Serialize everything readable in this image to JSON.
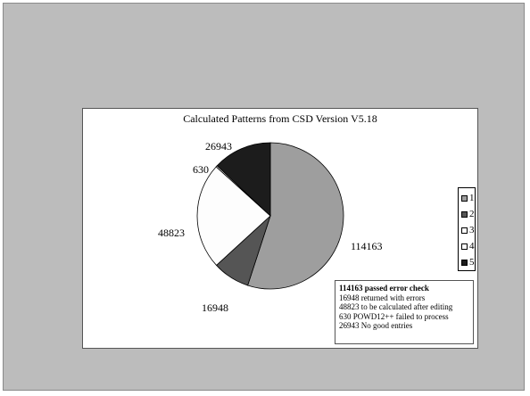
{
  "chart_data": {
    "type": "pie",
    "title": "Calculated Patterns from CSD Version V5.18",
    "categories": [
      "1",
      "2",
      "3",
      "4",
      "5"
    ],
    "values": [
      114163,
      16948,
      48823,
      630,
      26943
    ],
    "colors": [
      "#9e9e9e",
      "#555555",
      "#fdfdfd",
      "#ffffff",
      "#1c1c1c"
    ],
    "data_labels": [
      "114163",
      "16948",
      "48823",
      "630",
      "26943"
    ],
    "legend": {
      "placement": "right",
      "entries": [
        "1",
        "2",
        "3",
        "4",
        "5"
      ]
    },
    "annotations": [
      "114163 passed error check",
      "16948   returned with errors",
      "48823  to be calculated after editing",
      "630 POWD12++ failed to process",
      "26943 No good entries"
    ]
  }
}
